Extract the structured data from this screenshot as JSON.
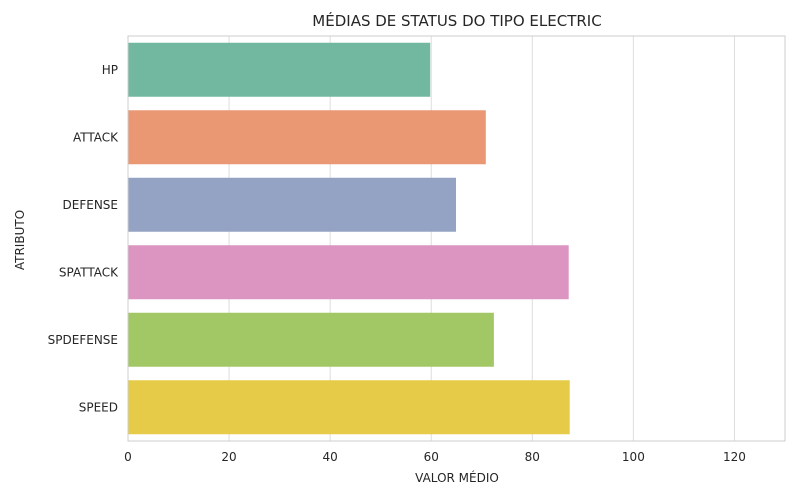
{
  "chart_data": {
    "type": "bar",
    "orientation": "horizontal",
    "title": "MÉDIAS DE STATUS DO TIPO ELECTRIC",
    "xlabel": "VALOR MÉDIO",
    "ylabel": "ATRIBUTO",
    "categories": [
      "HP",
      "ATTACK",
      "DEFENSE",
      "SPATTACK",
      "SPDEFENSE",
      "SPEED"
    ],
    "values": [
      59.8,
      70.8,
      64.9,
      87.2,
      72.4,
      87.4
    ],
    "xlim": [
      0,
      130
    ],
    "xticks": [
      "0",
      "20",
      "40",
      "60",
      "80",
      "100",
      "120"
    ],
    "grid": true,
    "colors": [
      "#72b8a0",
      "#ea9874",
      "#94a3c3",
      "#dc94c1",
      "#a2c865",
      "#e5cb47"
    ]
  }
}
